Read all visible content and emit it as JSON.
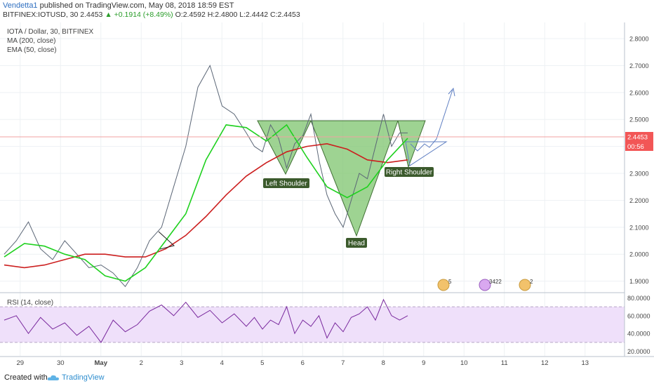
{
  "header": {
    "author": "Vendetta1",
    "published": " published on TradingView.com, May 08, 2018 18:59 EST",
    "symbol_line": "BITFINEX:IOTUSD, 30 2.4453",
    "change": "▲ +0.1914 (+8.49%)",
    "ohlc": "O:2.4592 H:2.4800 L:2.4442 C:2.4453"
  },
  "indicators": {
    "title": "IOTA / Dollar, 30, BITFINEX",
    "ma": "MA (200, close)",
    "ema": "EMA (50, close)",
    "rsi": "RSI (14, close)"
  },
  "footer": {
    "created": "Created with",
    "brand": "TradingView"
  },
  "colors": {
    "ma": "#cc1f1f",
    "ema": "#1fd11f",
    "rsi": "#7a2a9e",
    "rsi_band": "#efe0fa",
    "pattern_fill": "#7dc46d",
    "pattern_stroke": "#3f6e33",
    "label_bg": "#3b5a2c",
    "price_tag": "#f25656",
    "projection": "#5f7fc2"
  },
  "chart_data": {
    "type": "line",
    "price_axis": {
      "min": 1.9,
      "max": 2.8,
      "ticks": [
        "2.8000",
        "2.7000",
        "2.6000",
        "2.5000",
        "2.4000",
        "2.3000",
        "2.2000",
        "2.1000",
        "2.0000",
        "1.9000"
      ]
    },
    "rsi_axis": {
      "min": 20,
      "max": 80,
      "ticks": [
        "80.0000",
        "60.0000",
        "40.0000",
        "20.0000"
      ],
      "band": [
        30,
        70
      ]
    },
    "time_axis": {
      "ticks": [
        "29",
        "30",
        "May",
        "2",
        "3",
        "4",
        "5",
        "6",
        "7",
        "8",
        "9",
        "10",
        "11",
        "12",
        "13"
      ],
      "positions": [
        0.5,
        1.5,
        2.5,
        3.5,
        4.5,
        5.5,
        6.5,
        7.5,
        8.5,
        9.5,
        10.5,
        11.5,
        12.5,
        13.5,
        14.5
      ]
    },
    "last_price": "2.4453",
    "countdown": "00:56",
    "series": [
      {
        "name": "MA (200, close)",
        "x": [
          0,
          0.5,
          1,
          1.5,
          2,
          2.5,
          3,
          3.5,
          4,
          4.5,
          5,
          5.5,
          6,
          6.5,
          7,
          7.5,
          8,
          8.5,
          9,
          9.5,
          10
        ],
        "y": [
          1.96,
          1.95,
          1.96,
          1.98,
          2.0,
          2.0,
          1.99,
          1.99,
          2.02,
          2.07,
          2.14,
          2.22,
          2.29,
          2.34,
          2.38,
          2.4,
          2.41,
          2.39,
          2.35,
          2.34,
          2.35
        ]
      },
      {
        "name": "EMA (50, close)",
        "x": [
          0,
          0.5,
          1,
          1.5,
          2,
          2.5,
          3,
          3.5,
          4,
          4.5,
          5,
          5.5,
          6,
          6.5,
          7,
          7.5,
          8,
          8.5,
          9,
          9.5,
          10
        ],
        "y": [
          1.99,
          2.04,
          2.03,
          2.0,
          1.98,
          1.92,
          1.9,
          1.95,
          2.05,
          2.15,
          2.35,
          2.48,
          2.47,
          2.42,
          2.48,
          2.36,
          2.25,
          2.21,
          2.25,
          2.35,
          2.43
        ]
      },
      {
        "name": "price",
        "x": [
          0,
          0.3,
          0.6,
          0.9,
          1.2,
          1.5,
          1.8,
          2.1,
          2.4,
          2.7,
          3,
          3.3,
          3.6,
          3.9,
          4.2,
          4.5,
          4.8,
          5.1,
          5.4,
          5.7,
          6,
          6.2,
          6.4,
          6.6,
          6.8,
          7,
          7.2,
          7.4,
          7.6,
          7.8,
          8,
          8.2,
          8.4,
          8.6,
          8.8,
          9,
          9.2,
          9.4,
          9.6,
          9.8,
          10
        ],
        "y": [
          2.0,
          2.05,
          2.12,
          2.02,
          1.98,
          2.05,
          2.0,
          1.95,
          1.96,
          1.93,
          1.88,
          1.95,
          2.05,
          2.1,
          2.25,
          2.4,
          2.62,
          2.7,
          2.55,
          2.52,
          2.45,
          2.4,
          2.38,
          2.48,
          2.43,
          2.32,
          2.41,
          2.44,
          2.52,
          2.35,
          2.22,
          2.15,
          2.1,
          2.2,
          2.3,
          2.28,
          2.4,
          2.52,
          2.4,
          2.45,
          2.45
        ]
      },
      {
        "name": "RSI (14, close)",
        "x": [
          0,
          0.3,
          0.6,
          0.9,
          1.2,
          1.5,
          1.8,
          2.1,
          2.4,
          2.7,
          3,
          3.3,
          3.6,
          3.9,
          4.2,
          4.5,
          4.8,
          5.1,
          5.4,
          5.7,
          6,
          6.2,
          6.4,
          6.6,
          6.8,
          7,
          7.2,
          7.4,
          7.6,
          7.8,
          8,
          8.2,
          8.4,
          8.6,
          8.8,
          9,
          9.2,
          9.4,
          9.6,
          9.8,
          10
        ],
        "y": [
          55,
          60,
          40,
          58,
          45,
          52,
          38,
          48,
          30,
          55,
          42,
          50,
          65,
          72,
          60,
          75,
          58,
          66,
          52,
          62,
          48,
          58,
          45,
          55,
          50,
          70,
          40,
          55,
          48,
          60,
          35,
          52,
          42,
          58,
          62,
          70,
          55,
          78,
          60,
          55,
          60
        ]
      }
    ],
    "annotations": [
      {
        "text": "Left Shoulder",
        "x": 6.6,
        "y": 2.28
      },
      {
        "text": "Head",
        "x": 8.6,
        "y": 2.05
      },
      {
        "text": "Right Shoulder",
        "x": 10.3,
        "y": 2.31
      }
    ],
    "markers": [
      "5",
      "3422",
      "2"
    ]
  }
}
